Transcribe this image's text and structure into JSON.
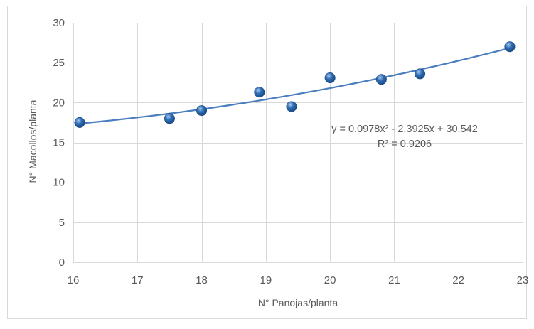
{
  "chart_data": {
    "type": "scatter",
    "xlabel": "N° Panojas/planta",
    "ylabel": "N° Macollos/planta",
    "xlim": [
      16,
      23
    ],
    "ylim": [
      0,
      30
    ],
    "x_ticks": [
      16,
      17,
      18,
      19,
      20,
      21,
      22,
      23
    ],
    "y_ticks": [
      0,
      5,
      10,
      15,
      20,
      25,
      30
    ],
    "x_tick_labels": [
      "16",
      "17",
      "18",
      "19",
      "20",
      "21",
      "22",
      "23"
    ],
    "y_tick_labels": [
      "0",
      "5",
      "10",
      "15",
      "20",
      "25",
      "30"
    ],
    "grid": true,
    "points": [
      {
        "x": 16.1,
        "y": 17.5
      },
      {
        "x": 17.5,
        "y": 18.0
      },
      {
        "x": 18.0,
        "y": 19.0
      },
      {
        "x": 18.9,
        "y": 21.3
      },
      {
        "x": 19.4,
        "y": 19.5
      },
      {
        "x": 20.0,
        "y": 23.1
      },
      {
        "x": 20.8,
        "y": 22.9
      },
      {
        "x": 21.4,
        "y": 23.6
      },
      {
        "x": 22.8,
        "y": 27.0
      }
    ],
    "trendline": {
      "type": "polynomial",
      "coefficients": [
        0.0978,
        -2.3925,
        30.542
      ],
      "x_range": [
        16.1,
        22.8
      ],
      "equation_text": "y = 0.0978x² - 2.3925x + 30.542",
      "r2_text": "R² = 0.9206"
    },
    "colors": {
      "marker": "#2e6db4",
      "marker_highlight": "#a9c8ee",
      "marker_dark": "#1b4a82",
      "trendline": "#4a7dbd",
      "grid": "#d9d9d9",
      "text": "#595959",
      "frame": "#d9d9d9"
    }
  }
}
